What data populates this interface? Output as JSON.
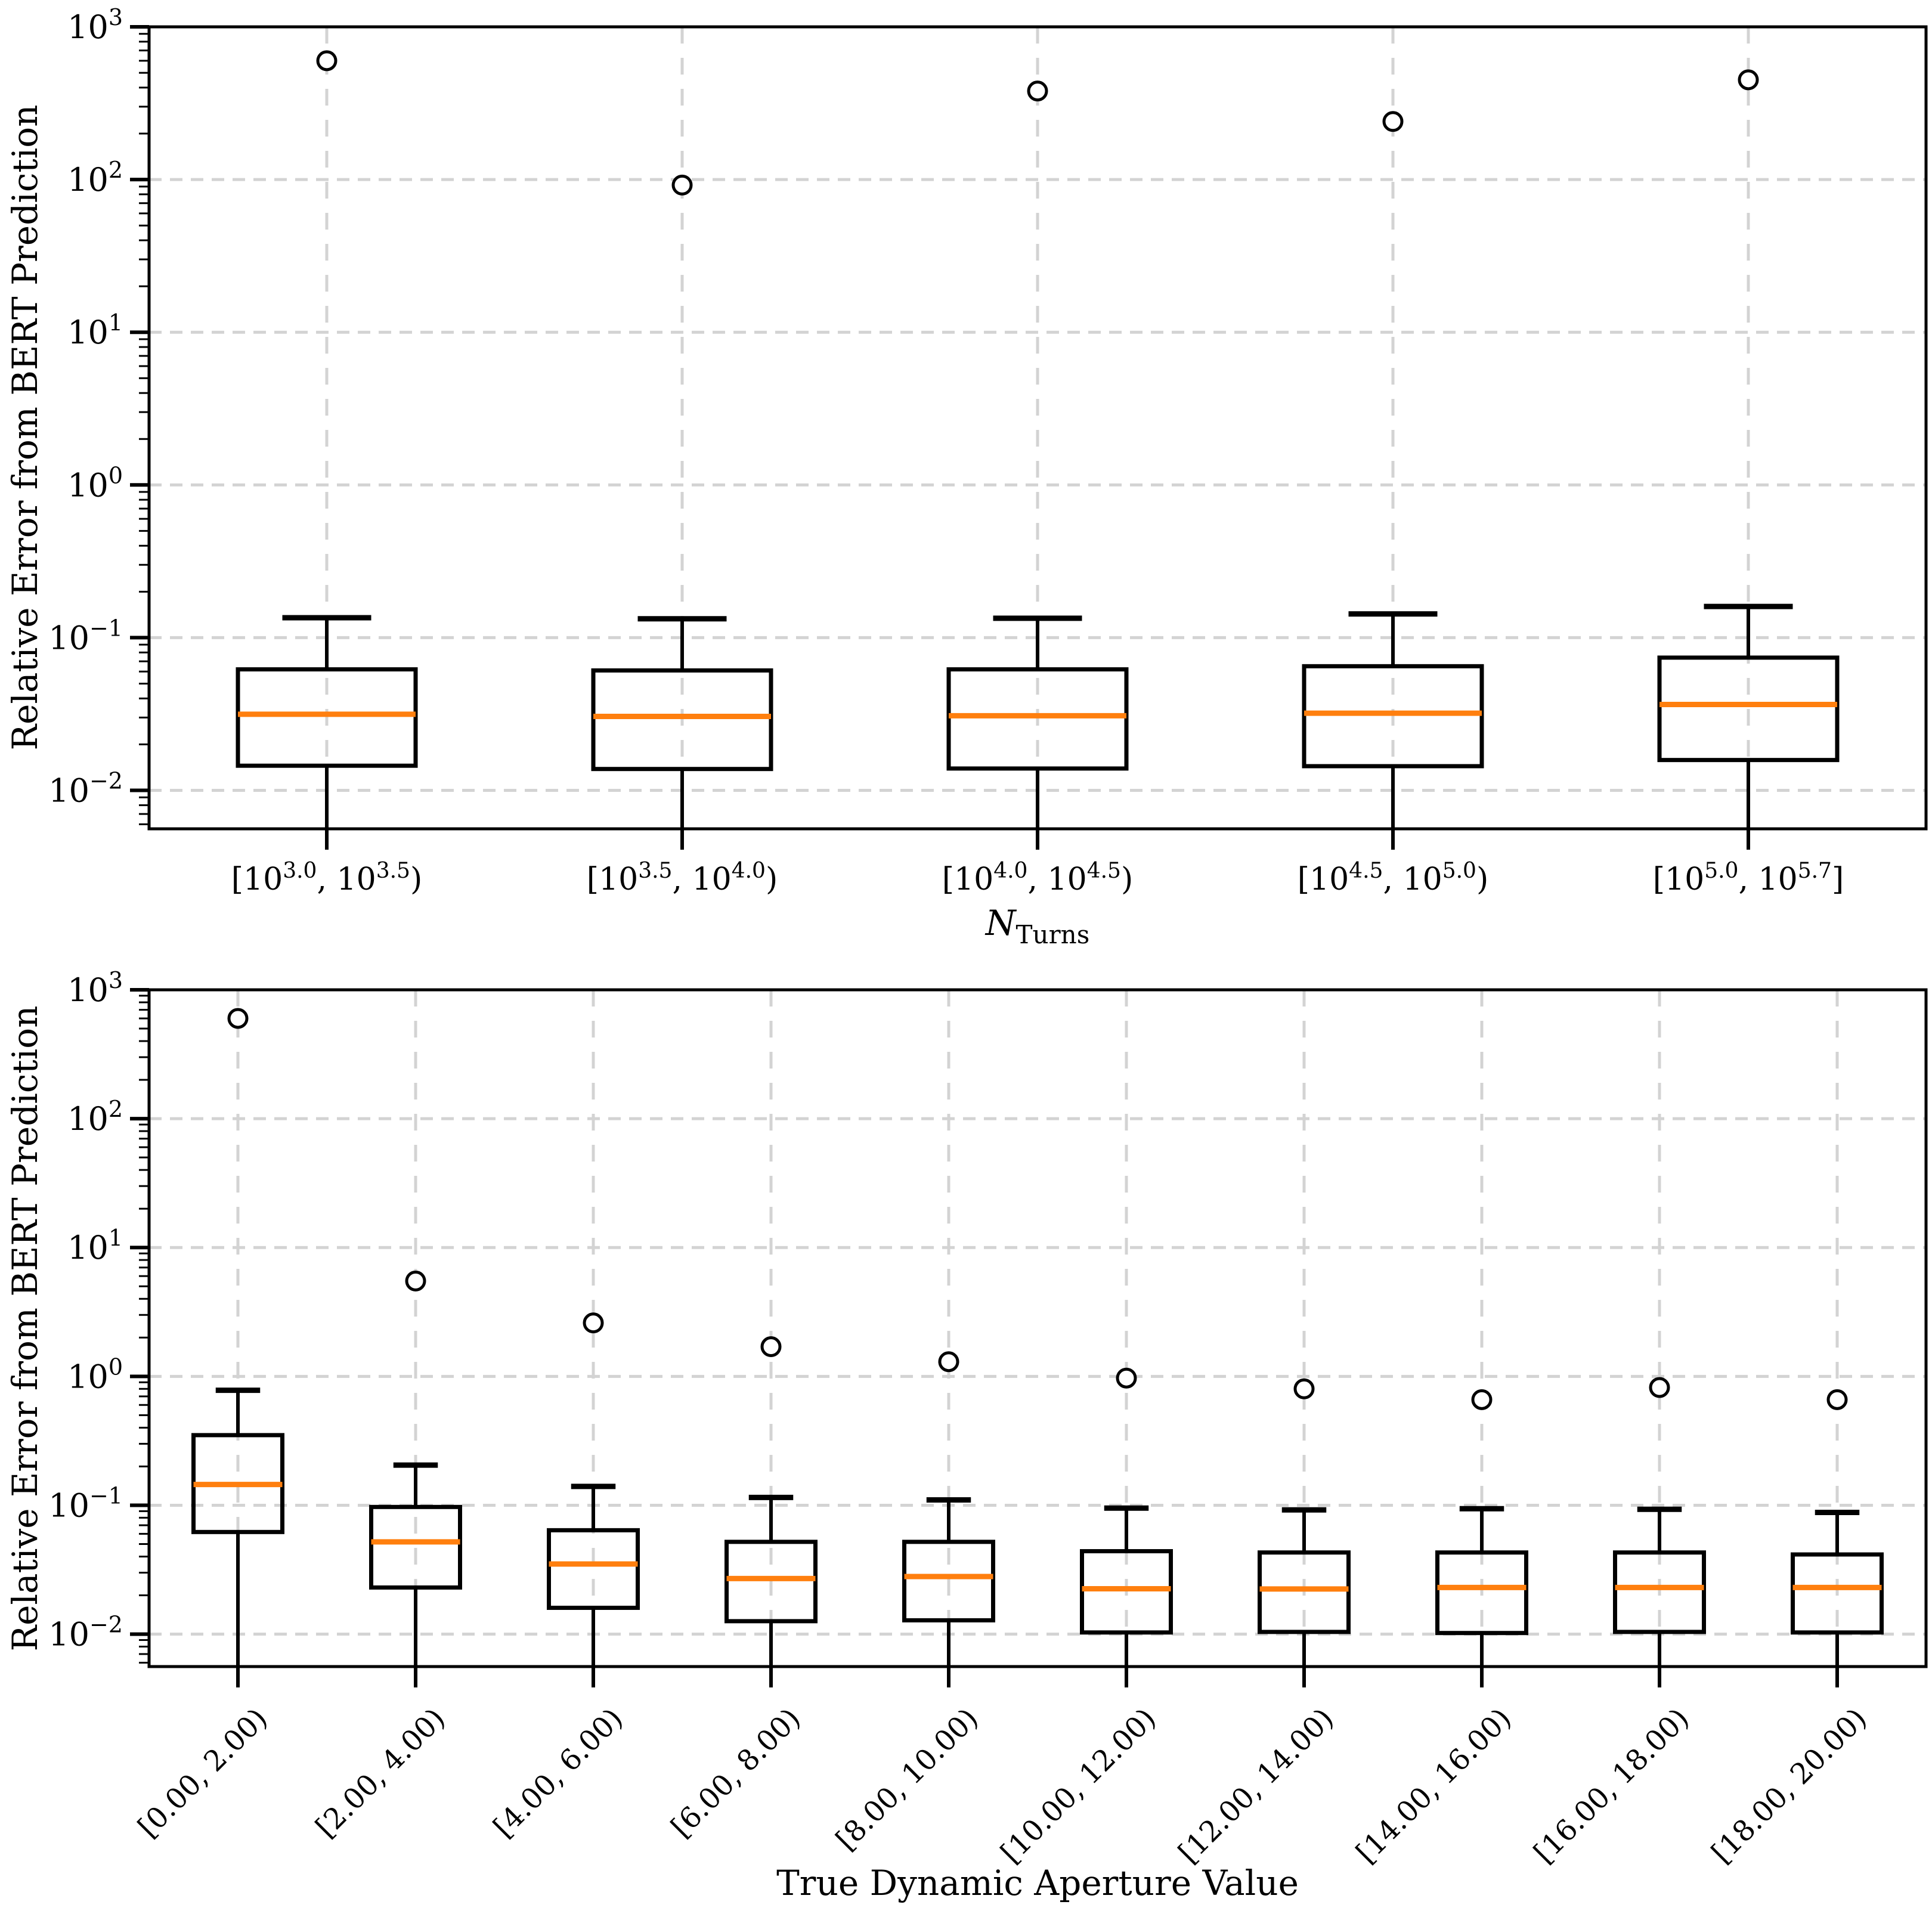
{
  "colors": {
    "box_edge": "#000000",
    "median_line": "#ff7f0e",
    "grid_line": "#d3d3d3",
    "outlier_edge": "#000000",
    "outlier_fill": "#ffffff",
    "background": "#ffffff",
    "text": "#000000"
  },
  "chart_data": [
    {
      "type": "boxplot",
      "title": "",
      "ylabel": "Relative Error from BERT Prediction",
      "xlabel": {
        "main": "N",
        "sub": "Turns"
      },
      "yscale": "log",
      "ylim": [
        0.0056,
        1000
      ],
      "y_tick_exponents": [
        3,
        2,
        1,
        0,
        -1,
        -2
      ],
      "grid": "major-dashed-both-axes",
      "legend": "none",
      "xtick_style": "powers",
      "categories": [
        {
          "open": "[",
          "lo": "3.0",
          "hi": "3.5",
          "close": ")"
        },
        {
          "open": "[",
          "lo": "3.5",
          "hi": "4.0",
          "close": ")"
        },
        {
          "open": "[",
          "lo": "4.0",
          "hi": "4.5",
          "close": ")"
        },
        {
          "open": "[",
          "lo": "4.5",
          "hi": "5.0",
          "close": ")"
        },
        {
          "open": "[",
          "lo": "5.0",
          "hi": "5.7",
          "close": "]"
        }
      ],
      "boxes": [
        {
          "whisker_high": 0.135,
          "q3": 0.062,
          "median": 0.0315,
          "q1": 0.0145,
          "whisker_low": 0.004,
          "outliers": [
            600
          ]
        },
        {
          "whisker_high": 0.133,
          "q3": 0.061,
          "median": 0.0305,
          "q1": 0.0138,
          "whisker_low": 0.004,
          "outliers": [
            92
          ]
        },
        {
          "whisker_high": 0.134,
          "q3": 0.062,
          "median": 0.0308,
          "q1": 0.0139,
          "whisker_low": 0.004,
          "outliers": [
            380
          ]
        },
        {
          "whisker_high": 0.143,
          "q3": 0.065,
          "median": 0.032,
          "q1": 0.0144,
          "whisker_low": 0.004,
          "outliers": [
            240
          ]
        },
        {
          "whisker_high": 0.16,
          "q3": 0.074,
          "median": 0.0365,
          "q1": 0.0158,
          "whisker_low": 0.004,
          "outliers": [
            450
          ]
        }
      ]
    },
    {
      "type": "boxplot",
      "title": "",
      "ylabel": "Relative Error from BERT Prediction",
      "xlabel": "True Dynamic Aperture Value",
      "yscale": "log",
      "ylim": [
        0.0056,
        1000
      ],
      "y_tick_exponents": [
        3,
        2,
        1,
        0,
        -1,
        -2
      ],
      "grid": "major-dashed-both-axes",
      "legend": "none",
      "xtick_style": "rotated",
      "categories": [
        "[0.00, 2.00)",
        "[2.00, 4.00)",
        "[4.00, 6.00)",
        "[6.00, 8.00)",
        "[8.00, 10.00)",
        "[10.00, 12.00)",
        "[12.00, 14.00)",
        "[14.00, 16.00)",
        "[16.00, 18.00)",
        "[18.00, 20.00)"
      ],
      "boxes": [
        {
          "whisker_high": 0.78,
          "q3": 0.35,
          "median": 0.145,
          "q1": 0.062,
          "whisker_low": 0.004,
          "outliers": [
            600
          ]
        },
        {
          "whisker_high": 0.205,
          "q3": 0.097,
          "median": 0.052,
          "q1": 0.023,
          "whisker_low": 0.004,
          "outliers": [
            5.5
          ]
        },
        {
          "whisker_high": 0.14,
          "q3": 0.064,
          "median": 0.035,
          "q1": 0.016,
          "whisker_low": 0.004,
          "outliers": [
            2.6
          ]
        },
        {
          "whisker_high": 0.115,
          "q3": 0.052,
          "median": 0.027,
          "q1": 0.0126,
          "whisker_low": 0.004,
          "outliers": [
            1.7
          ]
        },
        {
          "whisker_high": 0.11,
          "q3": 0.052,
          "median": 0.028,
          "q1": 0.0128,
          "whisker_low": 0.004,
          "outliers": [
            1.3
          ]
        },
        {
          "whisker_high": 0.095,
          "q3": 0.044,
          "median": 0.0225,
          "q1": 0.0103,
          "whisker_low": 0.004,
          "outliers": [
            0.97
          ]
        },
        {
          "whisker_high": 0.092,
          "q3": 0.043,
          "median": 0.0224,
          "q1": 0.0104,
          "whisker_low": 0.004,
          "outliers": [
            0.8
          ]
        },
        {
          "whisker_high": 0.094,
          "q3": 0.043,
          "median": 0.023,
          "q1": 0.0102,
          "whisker_low": 0.004,
          "outliers": [
            0.66
          ]
        },
        {
          "whisker_high": 0.093,
          "q3": 0.043,
          "median": 0.023,
          "q1": 0.0104,
          "whisker_low": 0.004,
          "outliers": [
            0.82
          ]
        },
        {
          "whisker_high": 0.088,
          "q3": 0.0415,
          "median": 0.023,
          "q1": 0.0103,
          "whisker_low": 0.004,
          "outliers": [
            0.66
          ]
        }
      ]
    }
  ]
}
